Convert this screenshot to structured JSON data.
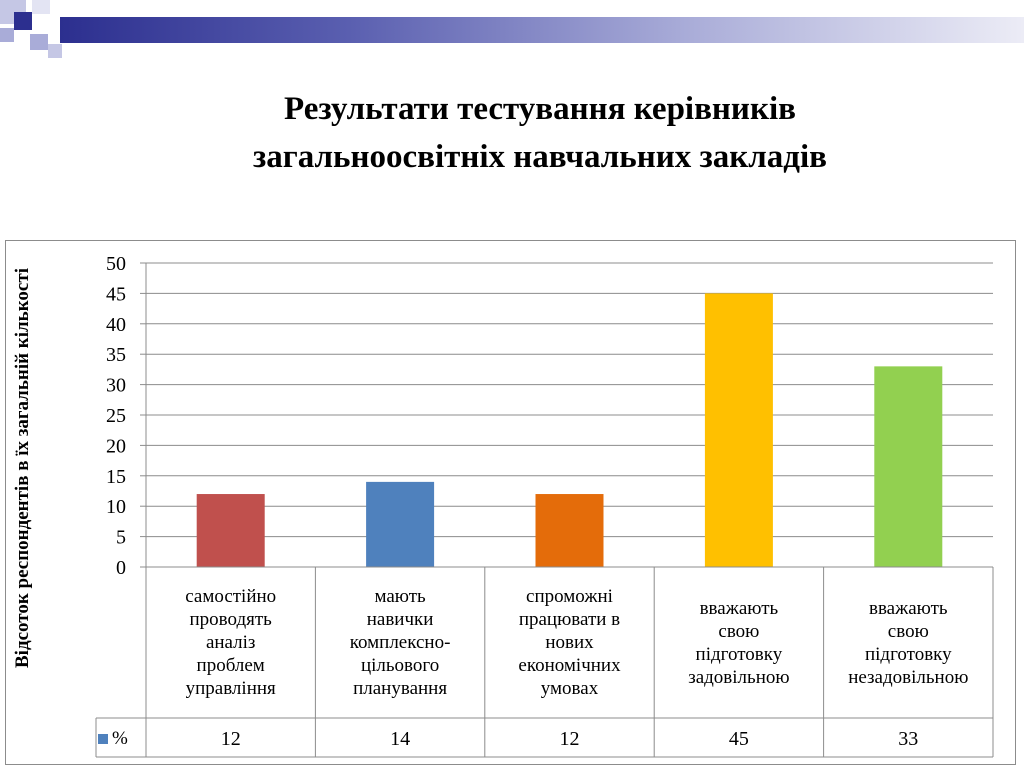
{
  "slide": {
    "title_line1": "Результати тестування керівників",
    "title_line2": "загальноосвітніх навчальних закладів"
  },
  "chart_data": {
    "type": "bar",
    "title": "",
    "ylabel": "Відсоток респондентів в їх загальній кількості",
    "xlabel": "",
    "ylim": [
      0,
      50
    ],
    "yticks": [
      0,
      5,
      10,
      15,
      20,
      25,
      30,
      35,
      40,
      45,
      50
    ],
    "grid": true,
    "categories": [
      "самостійно проводять аналіз проблем управління",
      "мають навички комплексно-цільового планування",
      "спроможні працювати в нових економічних умовах",
      "вважають свою підготовку задовільною",
      "вважають свою підготовку незадовільною"
    ],
    "category_lines": [
      [
        "самостійно",
        "проводять",
        "аналіз",
        "проблем",
        "управління"
      ],
      [
        "мають",
        "навички",
        "комплексно-",
        "цільового",
        "планування"
      ],
      [
        "спроможні",
        "працювати в",
        "нових",
        "економічних",
        "умовах"
      ],
      [
        "вважають",
        "свою",
        "підготовку",
        "задовільною"
      ],
      [
        "вважають",
        "свою",
        "підготовку",
        "незадовільною"
      ]
    ],
    "series": [
      {
        "name": "%",
        "values": [
          12,
          14,
          12,
          45,
          33
        ]
      }
    ],
    "bar_colors": [
      "#c0504d",
      "#4f81bd",
      "#e46c0a",
      "#ffc000",
      "#92d050"
    ],
    "data_table": {
      "legend_key": "%",
      "values": [
        "12",
        "14",
        "12",
        "45",
        "33"
      ]
    }
  }
}
